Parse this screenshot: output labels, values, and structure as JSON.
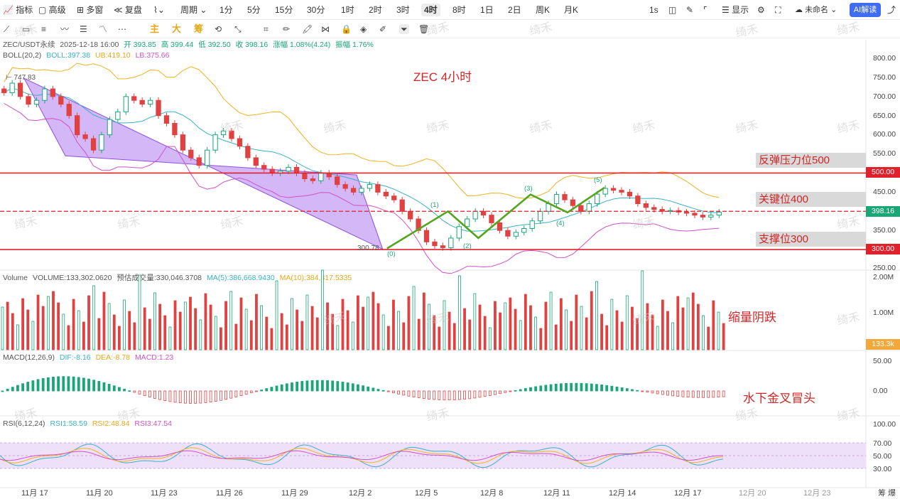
{
  "toolbar": {
    "left": [
      "指标",
      "高级",
      "多窗",
      "复盘",
      "周期",
      "1分",
      "5分",
      "15分",
      "30分",
      "1时",
      "2时",
      "3时",
      "4时",
      "8时",
      "1日",
      "2日",
      "周K",
      "月K"
    ],
    "active": "4时",
    "right": [
      "1s",
      "显示",
      "未命名"
    ],
    "ai_label": "AI解读"
  },
  "drawbar": {
    "texts": [
      "主",
      "大",
      "筹"
    ]
  },
  "ohlc": {
    "symbol": "ZEC/USDT永续",
    "datetime": "2025-12-18 16:00",
    "open": "开 393.85",
    "high": "高 399.44",
    "low": "低 392.50",
    "close": "收 398.16",
    "change": "涨幅 1.08%(4.24)",
    "amplitude": "振幅 1.76%"
  },
  "boll": {
    "name": "BOLL(20,2)",
    "mid": "BOLL:397.38",
    "ub": "UB:419.10",
    "lb": "LB:375.66"
  },
  "volume_info": {
    "name": "Volume",
    "vol": "VOLUME:133,302.0620",
    "est": "预估成交量:330,046.3708",
    "ma5": "MA(5):386,668.9430",
    "ma10": "MA(10):384,317.5335"
  },
  "macd_info": {
    "name": "MACD(12,26,9)",
    "dif": "DIF:-8.16",
    "dea": "DEA:-8.78",
    "macd": "MACD:1.23"
  },
  "rsi_info": {
    "name": "RSI(6,12,24)",
    "rsi1": "RSI1:58.59",
    "rsi2": "RSI2:48.84",
    "rsi3": "RSI3:47.54"
  },
  "annotations": {
    "title": "ZEC 4小时",
    "resistance": "反弹压力位500",
    "key": "关键位400",
    "support": "支撑位300",
    "volume_note": "缩量阴跌",
    "macd_note": "水下金叉冒头",
    "high_mark": "747.83",
    "low_mark": "300.78",
    "wave_labels": [
      "(0)",
      "(1)",
      "(2)",
      "(3)",
      "(4)",
      "(5)"
    ],
    "watermark": "绮禾"
  },
  "price_tags": {
    "r500": "500.00",
    "current": "398.16",
    "s300": "300.00",
    "vol_current": "133.3k"
  },
  "axis": {
    "price": [
      "800.00",
      "750.00",
      "700.00",
      "650.00",
      "600.00",
      "550.00",
      "450.00",
      "350.00",
      "250.00"
    ],
    "volume": [
      "2.00M",
      "1.00M"
    ],
    "macd": [
      "50.00",
      "0.00"
    ],
    "rsi": [
      "100.00",
      "70.00",
      "50.00",
      "30.00"
    ]
  },
  "dates": [
    "11月 17",
    "11月 20",
    "11月 23",
    "11月 26",
    "11月 29",
    "12月 2",
    "12月 5",
    "12月 8",
    "12月 11",
    "12月 14",
    "12月 17",
    "12月 20",
    "12月 23"
  ],
  "corner": "筹 爆",
  "colors": {
    "up": "#1aa676",
    "down": "#e04141",
    "channel": "#b07cf0",
    "wave": "#52a51c",
    "level": "#e0202a",
    "rsi_band": "#efe0fa"
  },
  "chart_data": {
    "type": "candlestick",
    "symbol": "ZEC/USDT永续",
    "timeframe": "4时",
    "ylim": [
      250,
      800
    ],
    "levels": [
      500,
      400,
      300
    ],
    "channel_start": {
      "date": "11月 16",
      "price": 747.83
    },
    "channel_end": {
      "date": "12月 3",
      "price": 300.78
    },
    "waves": [
      {
        "label": "(0)",
        "date": "12月 3",
        "price": 303
      },
      {
        "label": "(1)",
        "date": "12月 5",
        "price": 400
      },
      {
        "label": "(2)",
        "date": "12月 7",
        "price": 330
      },
      {
        "label": "(3)",
        "date": "12月 10",
        "price": 444
      },
      {
        "label": "(4)",
        "date": "12月 11",
        "price": 397
      },
      {
        "label": "(5)",
        "date": "12月 13",
        "price": 462
      }
    ],
    "close_series": [
      710,
      735,
      700,
      680,
      690,
      720,
      700,
      680,
      650,
      600,
      590,
      560,
      600,
      640,
      660,
      700,
      690,
      680,
      690,
      650,
      630,
      600,
      560,
      540,
      520,
      560,
      600,
      610,
      590,
      570,
      540,
      520,
      510,
      500,
      505,
      515,
      500,
      485,
      480,
      500,
      490,
      470,
      460,
      450,
      460,
      470,
      450,
      440,
      430,
      400,
      380,
      350,
      320,
      310,
      305,
      330,
      360,
      380,
      400,
      390,
      370,
      350,
      335,
      345,
      355,
      375,
      400,
      420,
      444,
      430,
      415,
      400,
      420,
      445,
      460,
      455,
      450,
      440,
      420,
      410,
      405,
      400,
      402,
      398,
      395,
      390,
      385,
      390,
      398
    ],
    "rsi_levels": [
      70,
      50,
      30
    ]
  }
}
